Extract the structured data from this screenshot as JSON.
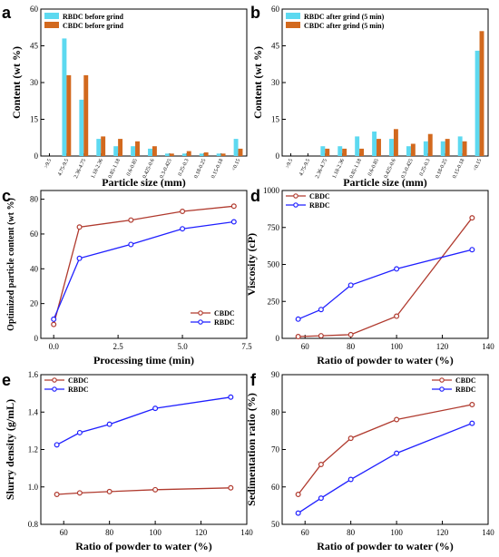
{
  "panels": [
    {
      "id": "a",
      "letter": "a",
      "type": "bar",
      "xlabel": "Particle size (mm)",
      "ylabel": "Content (wt %)",
      "ylim": [
        0,
        60
      ],
      "yticks": [
        0,
        15,
        30,
        45,
        60
      ],
      "categories": [
        ">9.5",
        "4.75-9.5",
        "2.36-4.75",
        "1.18-2.36",
        "0.85-1.18",
        "0.6-0.85",
        "0.425-0.6",
        "0.3-0.425",
        "0.25-0.3",
        "0.18-0.25",
        "0.15-0.18",
        "<0.15"
      ],
      "legend_position": "top-left",
      "series": [
        {
          "name": "RBDC before grind",
          "color": "#5dd9f0",
          "values": [
            0,
            48,
            23,
            7,
            4,
            4,
            3,
            1,
            1,
            1,
            1,
            7
          ]
        },
        {
          "name": "CBDC before grind",
          "color": "#d2691e",
          "values": [
            0,
            33,
            33,
            8,
            7,
            6,
            4,
            1,
            2,
            1.5,
            1,
            3
          ]
        }
      ]
    },
    {
      "id": "b",
      "letter": "b",
      "type": "bar",
      "xlabel": "Particle size (mm)",
      "ylabel": "Content (wt %)",
      "ylim": [
        0,
        60
      ],
      "yticks": [
        0,
        15,
        30,
        45,
        60
      ],
      "categories": [
        ">9.5",
        "4.75-9.5",
        "2.36-4.75",
        "1.18-2.36",
        "0.85-1.18",
        "0.6-0.85",
        "0.425-0.6",
        "0.3-0.425",
        "0.25-0.3",
        "0.18-0.25",
        "0.15-0.18",
        "<0.15"
      ],
      "legend_position": "top-left",
      "series": [
        {
          "name": "RBDC after grind (5 min)",
          "color": "#5dd9f0",
          "values": [
            0,
            0,
            4,
            4,
            8,
            10,
            7,
            4,
            6,
            6,
            8,
            43
          ]
        },
        {
          "name": "CBDC after grind (5 min)",
          "color": "#d2691e",
          "values": [
            0,
            0,
            3,
            3,
            3,
            7,
            11,
            5,
            9,
            7,
            6,
            51
          ]
        }
      ]
    },
    {
      "id": "c",
      "letter": "c",
      "type": "line",
      "xlabel": "Processing time (min)",
      "ylabel": "Optimized particle content (wt %)",
      "xlim": [
        -0.5,
        7.5
      ],
      "xticks": [
        0.0,
        2.5,
        5.0,
        7.5
      ],
      "xtick_labels": [
        "0.0",
        "2.5",
        "5.0",
        "7.5"
      ],
      "ylim": [
        0,
        85
      ],
      "yticks": [
        0,
        20,
        40,
        60,
        80
      ],
      "legend_position": "bottom-right",
      "series": [
        {
          "name": "CBDC",
          "color": "#b03a2e",
          "x": [
            0,
            1,
            3,
            5,
            7
          ],
          "y": [
            8,
            64,
            68,
            73,
            76
          ]
        },
        {
          "name": "RBDC",
          "color": "#1f1fff",
          "x": [
            0,
            1,
            3,
            5,
            7
          ],
          "y": [
            11,
            46,
            54,
            63,
            67
          ]
        }
      ]
    },
    {
      "id": "d",
      "letter": "d",
      "type": "line",
      "xlabel": "Ratio of powder to water (%)",
      "ylabel": "Viscosity (cP)",
      "xlim": [
        50,
        140
      ],
      "xticks": [
        60,
        80,
        100,
        120,
        140
      ],
      "ylim": [
        0,
        1000
      ],
      "yticks": [
        0,
        250,
        500,
        750,
        1000
      ],
      "legend_position": "top-left",
      "series": [
        {
          "name": "CBDC",
          "color": "#b03a2e",
          "x": [
            57,
            67,
            80,
            100,
            133
          ],
          "y": [
            12,
            18,
            25,
            150,
            815
          ]
        },
        {
          "name": "RBDC",
          "color": "#1f1fff",
          "x": [
            57,
            67,
            80,
            100,
            133
          ],
          "y": [
            130,
            195,
            360,
            470,
            600
          ]
        }
      ]
    },
    {
      "id": "e",
      "letter": "e",
      "type": "line",
      "xlabel": "Ratio of powder to water (%)",
      "ylabel": "Slurry density (g/mL)",
      "xlim": [
        50,
        140
      ],
      "xticks": [
        60,
        80,
        100,
        120,
        140
      ],
      "ylim": [
        0.8,
        1.6
      ],
      "yticks": [
        0.8,
        1.0,
        1.2,
        1.4,
        1.6
      ],
      "ytick_labels": [
        "0.8",
        "1.0",
        "1.2",
        "1.4",
        "1.6"
      ],
      "legend_position": "top-left",
      "series": [
        {
          "name": "CBDC",
          "color": "#b03a2e",
          "x": [
            57,
            67,
            80,
            100,
            133
          ],
          "y": [
            0.96,
            0.968,
            0.975,
            0.985,
            0.995
          ]
        },
        {
          "name": "RBDC",
          "color": "#1f1fff",
          "x": [
            57,
            67,
            80,
            100,
            133
          ],
          "y": [
            1.225,
            1.29,
            1.335,
            1.42,
            1.48
          ]
        }
      ]
    },
    {
      "id": "f",
      "letter": "f",
      "type": "line",
      "xlabel": "Ratio of powder to water (%)",
      "ylabel": "Sedimentation ratio (%)",
      "xlim": [
        50,
        140
      ],
      "xticks": [
        60,
        80,
        100,
        120,
        140
      ],
      "ylim": [
        50,
        90
      ],
      "yticks": [
        50,
        60,
        70,
        80,
        90
      ],
      "legend_position": "top-right",
      "series": [
        {
          "name": "CBDC",
          "color": "#b03a2e",
          "x": [
            57,
            67,
            80,
            100,
            133
          ],
          "y": [
            58,
            66,
            73,
            78,
            82
          ]
        },
        {
          "name": "RBDC",
          "color": "#1f1fff",
          "x": [
            57,
            67,
            80,
            100,
            133
          ],
          "y": [
            53,
            57,
            62,
            69,
            77
          ]
        }
      ]
    }
  ],
  "chart_data": [
    {
      "type": "bar",
      "panel": "a",
      "xlabel": "Particle size (mm)",
      "ylabel": "Content (wt %)",
      "ylim": [
        0,
        60
      ],
      "categories": [
        ">9.5",
        "4.75-9.5",
        "2.36-4.75",
        "1.18-2.36",
        "0.85-1.18",
        "0.6-0.85",
        "0.425-0.6",
        "0.3-0.425",
        "0.25-0.3",
        "0.18-0.25",
        "0.15-0.18",
        "<0.15"
      ],
      "series": [
        {
          "name": "RBDC before grind",
          "values": [
            0,
            48,
            23,
            7,
            4,
            4,
            3,
            1,
            1,
            1,
            1,
            7
          ]
        },
        {
          "name": "CBDC before grind",
          "values": [
            0,
            33,
            33,
            8,
            7,
            6,
            4,
            1,
            2,
            1.5,
            1,
            3
          ]
        }
      ]
    },
    {
      "type": "bar",
      "panel": "b",
      "xlabel": "Particle size (mm)",
      "ylabel": "Content (wt %)",
      "ylim": [
        0,
        60
      ],
      "categories": [
        ">9.5",
        "4.75-9.5",
        "2.36-4.75",
        "1.18-2.36",
        "0.85-1.18",
        "0.6-0.85",
        "0.425-0.6",
        "0.3-0.425",
        "0.25-0.3",
        "0.18-0.25",
        "0.15-0.18",
        "<0.15"
      ],
      "series": [
        {
          "name": "RBDC after grind (5 min)",
          "values": [
            0,
            0,
            4,
            4,
            8,
            10,
            7,
            4,
            6,
            6,
            8,
            43
          ]
        },
        {
          "name": "CBDC after grind (5 min)",
          "values": [
            0,
            0,
            3,
            3,
            3,
            7,
            11,
            5,
            9,
            7,
            6,
            51
          ]
        }
      ]
    },
    {
      "type": "line",
      "panel": "c",
      "xlabel": "Processing time (min)",
      "ylabel": "Optimized particle content (wt %)",
      "series": [
        {
          "name": "CBDC",
          "x": [
            0,
            1,
            3,
            5,
            7
          ],
          "y": [
            8,
            64,
            68,
            73,
            76
          ]
        },
        {
          "name": "RBDC",
          "x": [
            0,
            1,
            3,
            5,
            7
          ],
          "y": [
            11,
            46,
            54,
            63,
            67
          ]
        }
      ]
    },
    {
      "type": "line",
      "panel": "d",
      "xlabel": "Ratio of powder to water (%)",
      "ylabel": "Viscosity (cP)",
      "series": [
        {
          "name": "CBDC",
          "x": [
            57,
            67,
            80,
            100,
            133
          ],
          "y": [
            12,
            18,
            25,
            150,
            815
          ]
        },
        {
          "name": "RBDC",
          "x": [
            57,
            67,
            80,
            100,
            133
          ],
          "y": [
            130,
            195,
            360,
            470,
            600
          ]
        }
      ]
    },
    {
      "type": "line",
      "panel": "e",
      "xlabel": "Ratio of powder to water (%)",
      "ylabel": "Slurry density (g/mL)",
      "series": [
        {
          "name": "CBDC",
          "x": [
            57,
            67,
            80,
            100,
            133
          ],
          "y": [
            0.96,
            0.968,
            0.975,
            0.985,
            0.995
          ]
        },
        {
          "name": "RBDC",
          "x": [
            57,
            67,
            80,
            100,
            133
          ],
          "y": [
            1.225,
            1.29,
            1.335,
            1.42,
            1.48
          ]
        }
      ]
    },
    {
      "type": "line",
      "panel": "f",
      "xlabel": "Ratio of powder to water (%)",
      "ylabel": "Sedimentation ratio (%)",
      "series": [
        {
          "name": "CBDC",
          "x": [
            57,
            67,
            80,
            100,
            133
          ],
          "y": [
            58,
            66,
            73,
            78,
            82
          ]
        },
        {
          "name": "RBDC",
          "x": [
            57,
            67,
            80,
            100,
            133
          ],
          "y": [
            53,
            57,
            62,
            69,
            77
          ]
        }
      ]
    }
  ]
}
